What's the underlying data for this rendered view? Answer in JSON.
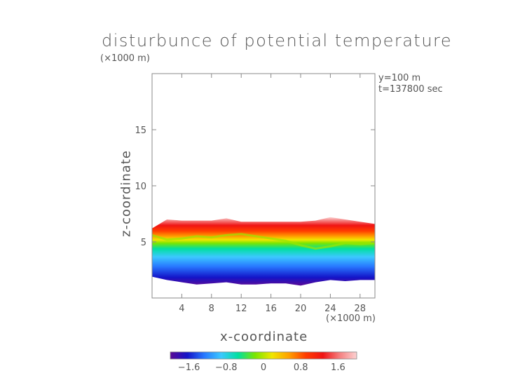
{
  "chart_data": {
    "type": "heatmap",
    "title": "disturbunce of potential temperature",
    "xlabel": "x-coordinate",
    "ylabel": "z-coordinate",
    "x_unit": "(×1000 m)",
    "y_unit": "(×1000 m)",
    "annotations": [
      "y=100 m",
      "t=137800 sec"
    ],
    "xlim": [
      0,
      30
    ],
    "ylim": [
      0,
      20
    ],
    "x_ticks": [
      4,
      8,
      12,
      16,
      20,
      24,
      28
    ],
    "x_tick_labels": [
      "4",
      "8",
      "12",
      "16",
      "20",
      "24",
      "28"
    ],
    "y_ticks": [
      5,
      10,
      15
    ],
    "y_tick_labels": [
      "5",
      "10",
      "15"
    ],
    "colorbar": {
      "min": -2.0,
      "max": 2.0,
      "tick_values": [
        -1.6,
        -0.8,
        0,
        0.8,
        1.6
      ],
      "tick_labels": [
        "−1.6",
        "−0.8",
        "0",
        "0.8",
        "1.6"
      ],
      "colors": [
        "#5a0a96",
        "#1414c8",
        "#2878ff",
        "#3cc8ff",
        "#00e0a0",
        "#7ae600",
        "#f0e600",
        "#ffa000",
        "#ff3c00",
        "#f01414",
        "#f58080",
        "#fcd2d2"
      ]
    },
    "field_profile": {
      "x": [
        0,
        2,
        4,
        6,
        8,
        10,
        12,
        14,
        16,
        18,
        20,
        22,
        24,
        26,
        28,
        30
      ],
      "top_of_anomaly_km": [
        6.2,
        7.0,
        6.9,
        6.9,
        6.9,
        7.1,
        6.8,
        6.8,
        6.8,
        6.8,
        6.8,
        6.9,
        7.2,
        7.0,
        6.8,
        6.6
      ],
      "bottom_of_anomaly_km": [
        1.9,
        1.6,
        1.4,
        1.2,
        1.3,
        1.4,
        1.2,
        1.2,
        1.3,
        1.3,
        1.1,
        1.4,
        1.6,
        1.5,
        1.6,
        1.6
      ],
      "zero_crossing_km": [
        5.6,
        5.2,
        5.3,
        5.5,
        5.4,
        5.6,
        5.7,
        5.5,
        5.3,
        5.1,
        4.7,
        4.4,
        4.6,
        4.9,
        4.8,
        4.9
      ]
    },
    "grid": false
  }
}
